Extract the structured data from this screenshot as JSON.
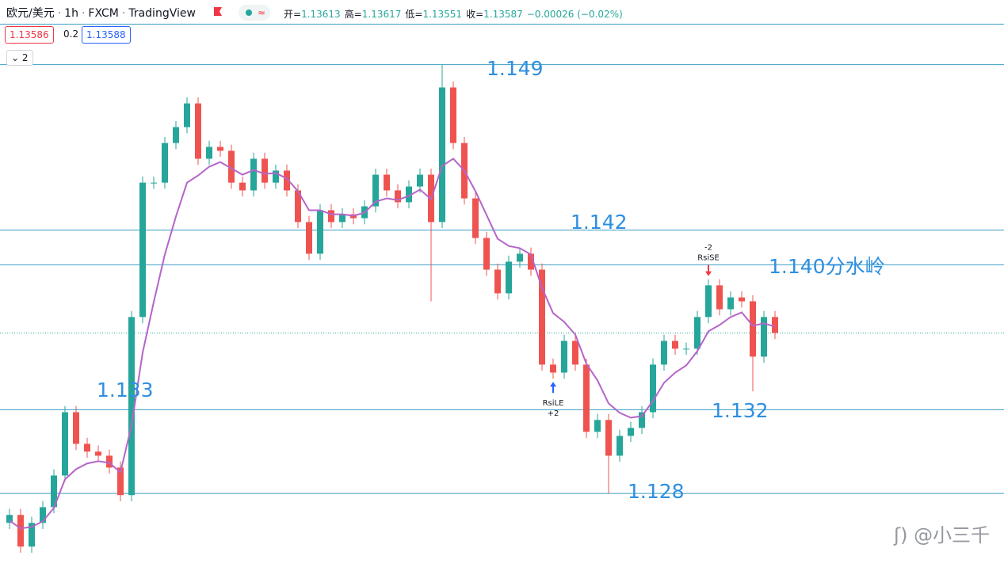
{
  "header": {
    "symbol": "欧元/美元",
    "interval": "1h",
    "source": "FXCM",
    "platform": "TradingView",
    "ohlc": [
      {
        "label": "开=",
        "value": "1.13613"
      },
      {
        "label": "高=",
        "value": "1.13617"
      },
      {
        "label": "低=",
        "value": "1.13551"
      },
      {
        "label": "收=",
        "value": "1.13587"
      }
    ],
    "change": "−0.00026 (−0.02%)",
    "bid": "1.13586",
    "spread": "0.2",
    "ask": "1.13588",
    "collapse": "2",
    "watermark": "@小三千"
  },
  "chart_data": {
    "type": "candlestick",
    "up_color": "#26a69a",
    "down_color": "#ef5350",
    "ylim": [
      1.1244,
      1.151
    ],
    "open": [
      1.12656,
      1.12695,
      1.1254,
      1.12656,
      1.12733,
      1.12888,
      1.13198,
      1.13043,
      1.13005,
      1.12985,
      1.12927,
      1.12792,
      1.13664,
      1.14322,
      1.14322,
      1.14516,
      1.14594,
      1.1471,
      1.14439,
      1.14497,
      1.14478,
      1.14322,
      1.14284,
      1.14439,
      1.14322,
      1.14381,
      1.14284,
      1.14129,
      1.13974,
      1.14187,
      1.14129,
      1.14167,
      1.14148,
      1.14206,
      1.14361,
      1.14284,
      1.14226,
      1.14303,
      1.14361,
      1.14129,
      1.14788,
      1.14516,
      1.14245,
      1.14051,
      1.13896,
      1.1378,
      1.13935,
      1.13974,
      1.13896,
      1.13431,
      1.13392,
      1.13547,
      1.13431,
      1.13102,
      1.1316,
      1.12985,
      1.13082,
      1.13121,
      1.13198,
      1.13431,
      1.13547,
      1.13509,
      1.13509,
      1.13664,
      1.13819,
      1.13702,
      1.1376,
      1.13741,
      1.1347,
      1.13664
    ],
    "high": [
      1.12725,
      1.12725,
      1.12686,
      1.12763,
      1.12918,
      1.13228,
      1.13228,
      1.13073,
      1.13035,
      1.13015,
      1.12957,
      1.13694,
      1.14352,
      1.14352,
      1.14546,
      1.14624,
      1.1474,
      1.1474,
      1.14527,
      1.14527,
      1.14508,
      1.14352,
      1.14469,
      1.14469,
      1.14411,
      1.14411,
      1.14314,
      1.14159,
      1.14217,
      1.14217,
      1.14197,
      1.14197,
      1.14236,
      1.14391,
      1.14391,
      1.14314,
      1.14333,
      1.14391,
      1.14391,
      1.149,
      1.14818,
      1.14546,
      1.14275,
      1.14081,
      1.13926,
      1.13965,
      1.14004,
      1.14004,
      1.13926,
      1.13461,
      1.13577,
      1.13577,
      1.13461,
      1.1319,
      1.1319,
      1.13112,
      1.13151,
      1.13228,
      1.13461,
      1.13577,
      1.13577,
      1.13539,
      1.13694,
      1.13849,
      1.13849,
      1.1379,
      1.1379,
      1.13771,
      1.13694,
      1.13694
    ],
    "low": [
      1.12626,
      1.1251,
      1.1251,
      1.12626,
      1.12703,
      1.12858,
      1.13013,
      1.12975,
      1.12955,
      1.12897,
      1.12762,
      1.12762,
      1.13634,
      1.14292,
      1.14292,
      1.14486,
      1.14564,
      1.14409,
      1.14409,
      1.14448,
      1.14292,
      1.14254,
      1.14254,
      1.14292,
      1.14292,
      1.14254,
      1.14099,
      1.13944,
      1.13944,
      1.14099,
      1.14099,
      1.14118,
      1.14118,
      1.14176,
      1.14254,
      1.14196,
      1.14196,
      1.14273,
      1.13741,
      1.14099,
      1.14486,
      1.14215,
      1.14021,
      1.13866,
      1.1375,
      1.1375,
      1.13905,
      1.13866,
      1.13401,
      1.13362,
      1.13362,
      1.13401,
      1.13072,
      1.13072,
      1.128,
      1.12955,
      1.13052,
      1.13091,
      1.13168,
      1.13401,
      1.13479,
      1.13479,
      1.13479,
      1.13634,
      1.13672,
      1.13672,
      1.13711,
      1.133,
      1.1344,
      1.13556
    ],
    "close": [
      1.12695,
      1.1254,
      1.12656,
      1.12733,
      1.12888,
      1.13198,
      1.13043,
      1.13005,
      1.12985,
      1.12927,
      1.12792,
      1.13664,
      1.14322,
      1.14322,
      1.14516,
      1.14594,
      1.1471,
      1.14439,
      1.14497,
      1.14478,
      1.14322,
      1.14284,
      1.14439,
      1.14322,
      1.14381,
      1.14284,
      1.14129,
      1.13974,
      1.14187,
      1.14129,
      1.14167,
      1.14148,
      1.14206,
      1.14361,
      1.14284,
      1.14226,
      1.14303,
      1.14361,
      1.14129,
      1.14788,
      1.14516,
      1.14245,
      1.14051,
      1.13896,
      1.1378,
      1.13935,
      1.13974,
      1.13896,
      1.13431,
      1.13392,
      1.13547,
      1.13431,
      1.13102,
      1.1316,
      1.12985,
      1.13082,
      1.13121,
      1.13198,
      1.13431,
      1.13547,
      1.13509,
      1.13509,
      1.13664,
      1.13819,
      1.13702,
      1.1376,
      1.13741,
      1.1347,
      1.13664,
      1.13586
    ],
    "ma": {
      "color": "#b565c9",
      "values": [
        1.12667,
        1.12629,
        1.12636,
        1.12664,
        1.12729,
        1.12869,
        1.12919,
        1.12947,
        1.12958,
        1.1295,
        1.12904,
        1.13133,
        1.13489,
        1.13737,
        1.1397,
        1.14156,
        1.14322,
        1.14357,
        1.144,
        1.14423,
        1.14392,
        1.14361,
        1.14384,
        1.14365,
        1.14369,
        1.14342,
        1.1428,
        1.14187,
        1.14187,
        1.14167,
        1.14167,
        1.1416,
        1.14175,
        1.14229,
        1.14245,
        1.14237,
        1.14257,
        1.14288,
        1.14241,
        1.14404,
        1.14439,
        1.14381,
        1.1428,
        1.14164,
        1.14047,
        1.14012,
        1.14001,
        1.1397,
        1.13807,
        1.13683,
        1.1364,
        1.13578,
        1.13435,
        1.13354,
        1.13241,
        1.13195,
        1.13171,
        1.13179,
        1.13253,
        1.13342,
        1.13392,
        1.13427,
        1.13497,
        1.13594,
        1.13625,
        1.13664,
        1.13687,
        1.13621,
        1.13633,
        1.13617
      ]
    },
    "levels": {
      "color": "#3c9dc4",
      "values": [
        1.149,
        1.1409,
        1.1392,
        1.1321,
        1.128
      ]
    },
    "annotation_color": "#2e8fe0",
    "annotations": [
      "1.149",
      "1.142",
      "1.140分水岭",
      "1.133",
      "1.132",
      "1.128"
    ],
    "signals": [
      {
        "label": "RsiLE",
        "qty": "+2",
        "color": "#2962ff"
      },
      {
        "label": "RsiSE",
        "qty": "-2",
        "color": "#f23645"
      }
    ]
  }
}
